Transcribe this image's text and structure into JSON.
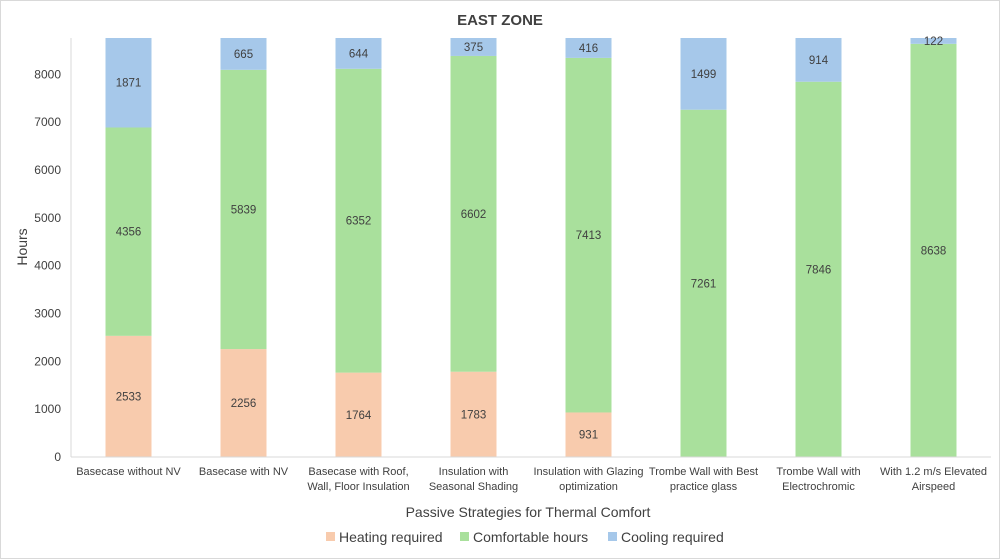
{
  "chart_data": {
    "type": "bar",
    "stacked": true,
    "title": "EAST ZONE",
    "xlabel": "Passive Strategies for Thermal Comfort",
    "ylabel": "Hours",
    "ylim": [
      0,
      8760
    ],
    "yticks": [
      0,
      1000,
      2000,
      3000,
      4000,
      5000,
      6000,
      7000,
      8000
    ],
    "grid": false,
    "legend_position": "bottom",
    "categories": [
      [
        "Basecase without NV"
      ],
      [
        "Basecase with NV"
      ],
      [
        "Basecase with Roof,",
        "Wall, Floor Insulation"
      ],
      [
        "Insulation with",
        "Seasonal Shading"
      ],
      [
        "Insulation with Glazing",
        "optimization"
      ],
      [
        "Trombe Wall with Best",
        "practice glass"
      ],
      [
        "Trombe Wall with",
        "Electrochromic"
      ],
      [
        "With 1.2 m/s Elevated",
        "Airspeed"
      ]
    ],
    "series": [
      {
        "name": "Heating required",
        "color": "#f8cbad",
        "values": [
          2533,
          2256,
          1764,
          1783,
          931,
          0,
          0,
          0
        ]
      },
      {
        "name": "Comfortable hours",
        "color": "#a9e09c",
        "values": [
          4356,
          5839,
          6352,
          6602,
          7413,
          7261,
          7846,
          8638
        ]
      },
      {
        "name": "Cooling required",
        "color": "#a6c8ea",
        "values": [
          1871,
          665,
          644,
          375,
          416,
          1499,
          914,
          122
        ]
      }
    ]
  }
}
